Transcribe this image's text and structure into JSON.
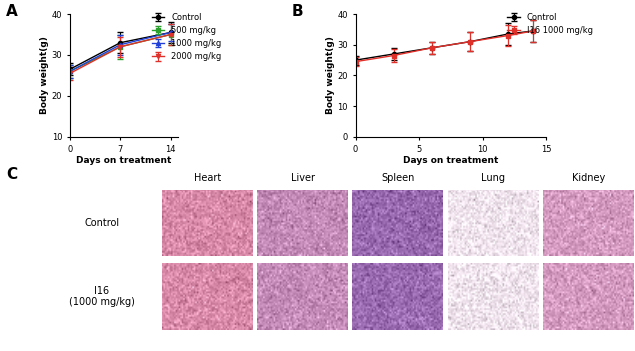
{
  "chart_data": [
    {
      "type": "line",
      "panel": "A",
      "x_label": "Days on treatment",
      "y_label": "Body weight(g)",
      "x": [
        0,
        7,
        14
      ],
      "xlim": [
        0,
        15
      ],
      "xticks": [
        0,
        7,
        14
      ],
      "ylim": [
        10,
        40
      ],
      "yticks": [
        10,
        20,
        30,
        40
      ],
      "legend": "upper right",
      "series": [
        {
          "name": "Control",
          "color": "#000000",
          "marker": "circle",
          "values": [
            26.5,
            33.0,
            35.5
          ],
          "error": [
            1.5,
            2.5,
            2.5
          ]
        },
        {
          "name": "500 mg/kg",
          "color": "#2ca02c",
          "marker": "square",
          "values": [
            26.0,
            32.0,
            35.0
          ],
          "error": [
            1.5,
            3.0,
            2.5
          ]
        },
        {
          "name": "1000 mg/kg",
          "color": "#1f3fd8",
          "marker": "triangle_up",
          "values": [
            26.0,
            32.5,
            35.5
          ],
          "error": [
            1.5,
            2.5,
            2.0
          ]
        },
        {
          "name": "2000 mg/kg",
          "color": "#e0302a",
          "marker": "triangle_down",
          "values": [
            25.5,
            32.0,
            35.0
          ],
          "error": [
            1.5,
            2.5,
            2.5
          ]
        }
      ]
    },
    {
      "type": "line",
      "panel": "B",
      "x_label": "Days on treatment",
      "y_label": "Body weight(g)",
      "x": [
        0,
        3,
        6,
        9,
        12,
        14
      ],
      "xlim": [
        0,
        15
      ],
      "xticks": [
        0,
        5,
        10,
        15
      ],
      "ylim": [
        0,
        40
      ],
      "yticks": [
        0,
        10,
        20,
        30,
        40
      ],
      "legend": "upper right",
      "series": [
        {
          "name": "Control",
          "color": "#000000",
          "marker": "circle",
          "values": [
            25.0,
            27.0,
            29.0,
            31.0,
            33.5,
            34.5
          ],
          "error": [
            1.5,
            2.0,
            2.0,
            3.0,
            3.5,
            3.5
          ]
        },
        {
          "name": "I16 1000 mg/kg",
          "color": "#e0302a",
          "marker": "square",
          "values": [
            24.5,
            26.5,
            29.0,
            31.0,
            33.0,
            34.5
          ],
          "error": [
            1.5,
            2.0,
            2.0,
            3.0,
            3.5,
            3.5
          ]
        }
      ]
    }
  ],
  "histology": {
    "panel": "C",
    "columns": [
      "Heart",
      "Liver",
      "Spleen",
      "Lung",
      "Kidney"
    ],
    "rows": [
      [
        "Control"
      ],
      [
        "I16",
        "(1000 mg/kg)"
      ]
    ]
  }
}
